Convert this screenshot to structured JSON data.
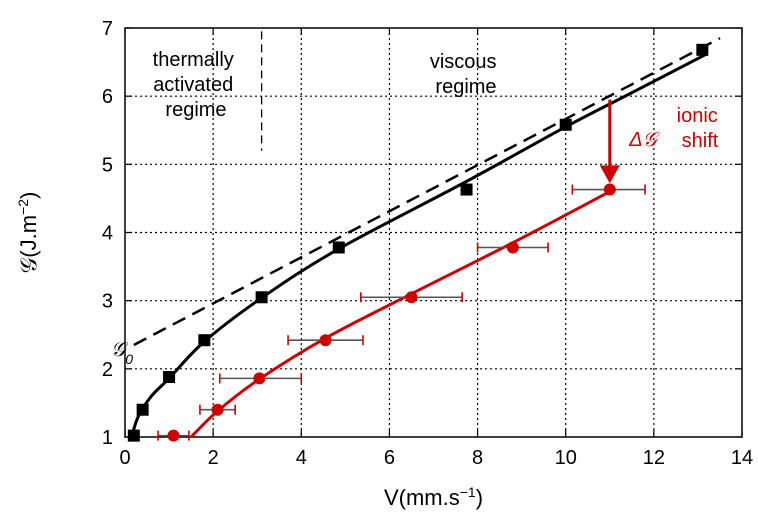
{
  "chart_data": {
    "type": "scatter",
    "xlabel_main": "V(mm.s",
    "xlabel_sup": "−1",
    "xlabel_end": ")",
    "ylabel_main": "𝒢(J.m",
    "ylabel_sup": "−2",
    "ylabel_end": ")",
    "xlim": [
      0,
      14
    ],
    "ylim": [
      1,
      7
    ],
    "xticks": [
      "0",
      "2",
      "4",
      "6",
      "8",
      "10",
      "12",
      "14"
    ],
    "yticks": [
      "1",
      "2",
      "3",
      "4",
      "5",
      "6",
      "7"
    ],
    "grid": true,
    "series": [
      {
        "color": "#000000",
        "marker": "square",
        "points": [
          [
            0.2,
            1.02
          ],
          [
            0.4,
            1.4
          ],
          [
            1.0,
            1.88
          ],
          [
            1.8,
            2.42
          ],
          [
            3.1,
            3.05
          ],
          [
            4.85,
            3.78
          ],
          [
            7.75,
            4.63
          ],
          [
            10.0,
            5.58
          ],
          [
            13.1,
            6.68
          ]
        ],
        "fit": [
          [
            0.15,
            1.0
          ],
          [
            0.3,
            1.3
          ],
          [
            0.6,
            1.6
          ],
          [
            1.0,
            1.86
          ],
          [
            1.8,
            2.4
          ],
          [
            3.1,
            3.04
          ],
          [
            4.85,
            3.76
          ],
          [
            7.75,
            4.75
          ],
          [
            10.0,
            5.55
          ],
          [
            11.5,
            6.05
          ],
          [
            13.2,
            6.62
          ]
        ]
      },
      {
        "color": "#cc0000",
        "marker": "circle",
        "points": [
          [
            1.1,
            1.02
          ],
          [
            2.1,
            1.4
          ],
          [
            3.05,
            1.86
          ],
          [
            4.55,
            2.42
          ],
          [
            6.5,
            3.05
          ],
          [
            8.8,
            3.78
          ],
          [
            11.0,
            4.63
          ]
        ],
        "xerr": [
          [
            0.75,
            1.45
          ],
          [
            1.7,
            2.5
          ],
          [
            2.15,
            4.0
          ],
          [
            3.7,
            5.4
          ],
          [
            5.35,
            7.65
          ],
          [
            8.0,
            9.6
          ],
          [
            10.15,
            11.8
          ]
        ],
        "fit": [
          [
            1.5,
            1.0
          ],
          [
            2.1,
            1.38
          ],
          [
            3.05,
            1.85
          ],
          [
            4.55,
            2.45
          ],
          [
            6.5,
            3.1
          ],
          [
            8.8,
            3.85
          ],
          [
            11.0,
            4.6
          ]
        ]
      }
    ],
    "dashed_line": [
      [
        0.2,
        2.35
      ],
      [
        13.5,
        6.85
      ]
    ],
    "regime_divider_x": 3.1,
    "regime_divider_y": [
      5.2,
      6.95
    ],
    "arrow": {
      "x": 11.0,
      "y_from": 5.95,
      "y_to": 4.72
    },
    "annotations": {
      "thermal": [
        "thermally",
        "activated",
        "regime"
      ],
      "viscous": [
        "viscous",
        "regime"
      ],
      "ionic": [
        "ionic",
        "shift"
      ],
      "g0_main": "𝒢",
      "g0_sub": "0",
      "delta_g": "Δ𝒢"
    }
  }
}
